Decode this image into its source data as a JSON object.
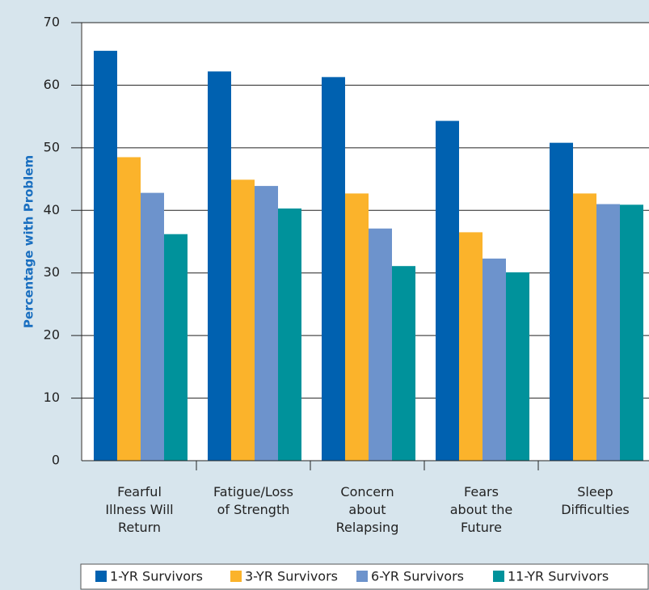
{
  "chart_data": {
    "type": "bar",
    "y_label": "Percentage with Problem",
    "categories": [
      "Fearful\nIllness Will\nReturn",
      "Fatigue/Loss\nof Strength",
      "Concern\nabout\nRelapsing",
      "Fears\nabout the\nFuture",
      "Sleep\nDifficulties"
    ],
    "series": [
      {
        "name": "1-YR Survivors",
        "color": "#0061b0",
        "values": [
          65.5,
          62.2,
          61.3,
          54.3,
          50.8
        ]
      },
      {
        "name": "3-YR Survivors",
        "color": "#fbb32b",
        "values": [
          48.5,
          44.9,
          42.7,
          36.5,
          42.7
        ]
      },
      {
        "name": "6-YR Survivors",
        "color": "#6d93cc",
        "values": [
          42.8,
          43.9,
          37.1,
          32.3,
          41.0
        ]
      },
      {
        "name": "11-YR Survivors",
        "color": "#00929b",
        "values": [
          36.2,
          40.3,
          31.1,
          30.1,
          40.9
        ]
      }
    ],
    "ylim": [
      0,
      70
    ],
    "yticks": [
      0,
      10,
      20,
      30,
      40,
      50,
      60,
      70
    ],
    "grid": true,
    "legend": "bottom"
  }
}
